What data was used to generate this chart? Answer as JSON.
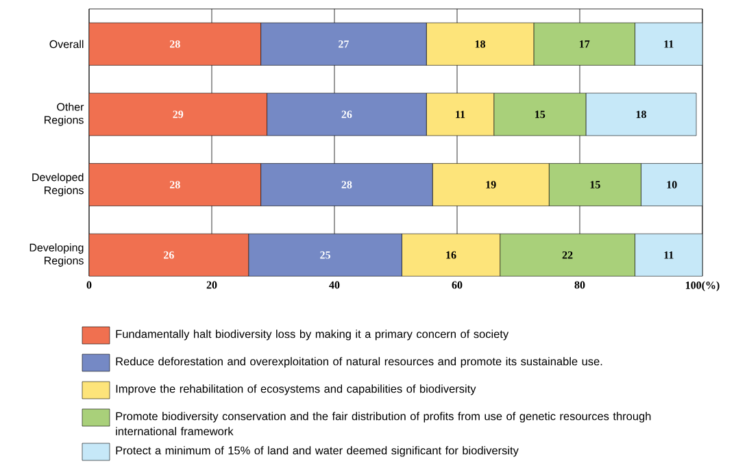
{
  "chart_data": {
    "type": "bar",
    "orientation": "horizontal",
    "stacked": true,
    "categories": [
      "Overall",
      "Other Regions",
      "Developed Regions",
      "Developing Regions"
    ],
    "xlim": [
      0,
      100
    ],
    "xticks": [
      0,
      20,
      40,
      60,
      80,
      {
        "value": 100,
        "label": "100(%)"
      }
    ],
    "grid": "x",
    "legend": "bottom",
    "series": [
      {
        "name": "Fundamentally halt biodiversity loss by making it a primary concern of society",
        "color": "#f07050",
        "values": [
          28,
          29,
          28,
          26
        ],
        "value_labels": [
          "28",
          "29",
          "28",
          "26"
        ]
      },
      {
        "name": "Reduce deforestation and overexploitation of natural resources and promote its sustainable use.",
        "color": "#7589c5",
        "values": [
          27,
          26,
          28,
          25
        ],
        "value_labels": [
          "27",
          "26",
          "28",
          "25"
        ]
      },
      {
        "name": "Improve the rehabilitation of ecosystems and capabilities of biodiversity",
        "color": "#fde47a",
        "values": [
          17.5,
          11,
          19,
          16
        ],
        "value_labels": [
          "18",
          "11",
          "19",
          "16"
        ]
      },
      {
        "name": "Promote biodiversity conservation and the fair distribution of profits from use of genetic resources through international framework",
        "color": "#a9d07a",
        "values": [
          16.5,
          15,
          15,
          22
        ],
        "value_labels": [
          "17",
          "15",
          "15",
          "22"
        ]
      },
      {
        "name": "Protect a minimum of 15% of land and water deemed significant for biodiversity",
        "color": "#c6e8f8",
        "values": [
          11,
          18,
          10,
          11
        ],
        "value_labels": [
          "11",
          "18",
          "10",
          "11"
        ]
      }
    ]
  }
}
